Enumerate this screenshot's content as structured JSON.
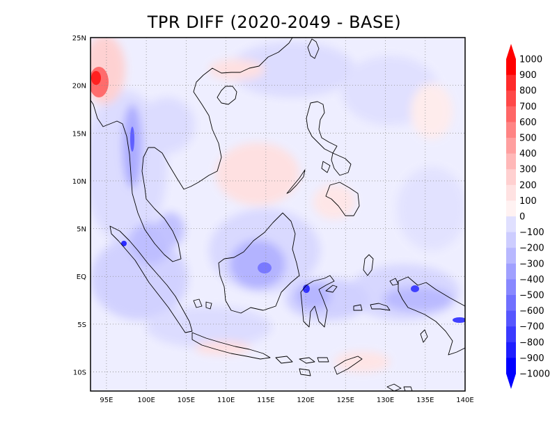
{
  "title": "TPR DIFF (2020-2049 - BASE)",
  "map": {
    "lon_ticks": [
      "95E",
      "100E",
      "105E",
      "110E",
      "115E",
      "120E",
      "125E",
      "130E",
      "135E",
      "140E"
    ],
    "lat_ticks": [
      "25N",
      "20N",
      "15N",
      "10N",
      "5N",
      "EQ",
      "5S",
      "10S"
    ],
    "lon_range": [
      93,
      140
    ],
    "lat_range": [
      -12,
      25
    ],
    "gridlines": "dotted",
    "colors": {
      "frame": "#000000",
      "coast": "#000000",
      "background": "#eeeeff"
    }
  },
  "colorbar": {
    "labels": [
      "1000",
      "900",
      "800",
      "700",
      "600",
      "500",
      "400",
      "300",
      "200",
      "100",
      "0",
      "−100",
      "−200",
      "−300",
      "−400",
      "−500",
      "−600",
      "−700",
      "−800",
      "−900",
      "−1000"
    ],
    "colors": [
      "#ff0000",
      "#ff2a2a",
      "#ff4848",
      "#ff6666",
      "#ff8484",
      "#ff9f9f",
      "#ffb8b8",
      "#ffd0d0",
      "#ffe2e2",
      "#fff2f2",
      "#f2f2ff",
      "#e0e0ff",
      "#cdcdff",
      "#b8b8ff",
      "#a0a0ff",
      "#8888ff",
      "#7070ff",
      "#5656ff",
      "#3a3aff",
      "#1e1eff",
      "#0000ff"
    ]
  }
}
